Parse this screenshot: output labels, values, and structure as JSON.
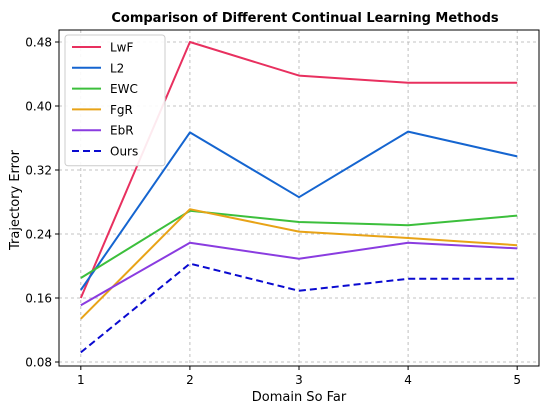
{
  "chart_data": {
    "type": "line",
    "title": "Comparison of Different Continual Learning Methods",
    "xlabel": "Domain So Far",
    "ylabel": "Trajectory Error",
    "x": [
      1,
      2,
      3,
      4,
      5
    ],
    "xlim": [
      0.8,
      5.2
    ],
    "ylim": [
      0.075,
      0.495
    ],
    "xticks": [
      "1",
      "2",
      "3",
      "4",
      "5"
    ],
    "yticks": [
      "0.08",
      "0.16",
      "0.24",
      "0.32",
      "0.40",
      "0.48"
    ],
    "ytick_values": [
      0.08,
      0.16,
      0.24,
      0.32,
      0.4,
      0.48
    ],
    "grid": true,
    "legend_position": "top-left",
    "series": [
      {
        "name": "LwF",
        "color": "#e8305f",
        "dash": "solid",
        "values": [
          0.16,
          0.48,
          0.438,
          0.429,
          0.429
        ]
      },
      {
        "name": "L2",
        "color": "#1565d0",
        "dash": "solid",
        "values": [
          0.17,
          0.367,
          0.286,
          0.368,
          0.337
        ]
      },
      {
        "name": "EWC",
        "color": "#3cbf3c",
        "dash": "solid",
        "values": [
          0.185,
          0.269,
          0.255,
          0.251,
          0.263
        ]
      },
      {
        "name": "FgR",
        "color": "#e8a317",
        "dash": "solid",
        "values": [
          0.134,
          0.271,
          0.243,
          0.235,
          0.226
        ]
      },
      {
        "name": "EbR",
        "color": "#8a3ce0",
        "dash": "solid",
        "values": [
          0.151,
          0.229,
          0.209,
          0.229,
          0.222
        ]
      },
      {
        "name": "Ours",
        "color": "#0a0ad0",
        "dash": "dashed",
        "values": [
          0.092,
          0.203,
          0.169,
          0.184,
          0.184
        ]
      }
    ]
  }
}
